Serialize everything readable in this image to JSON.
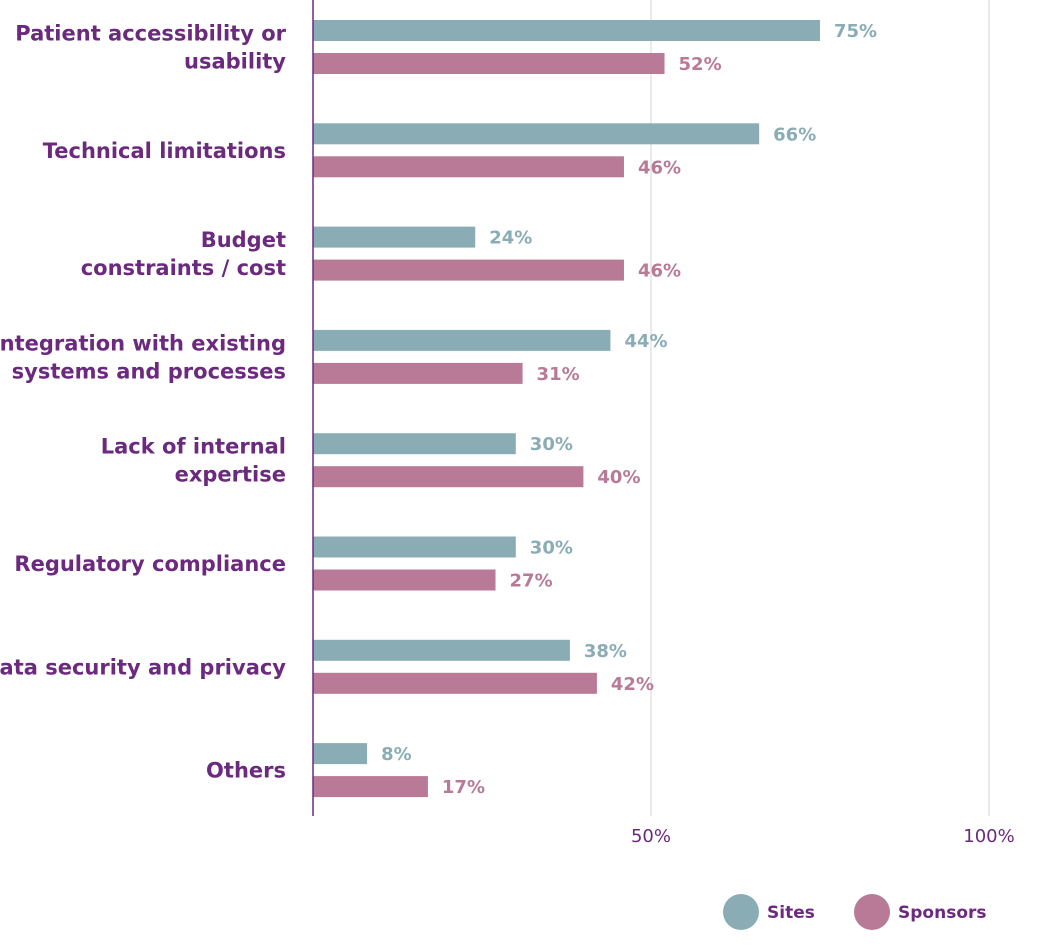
{
  "chart_data": {
    "type": "bar",
    "orientation": "horizontal",
    "categories": [
      [
        "Patient accessibility or",
        "usability"
      ],
      [
        "Technical limitations"
      ],
      [
        "Budget",
        "constraints / cost"
      ],
      [
        "Integration with existing",
        "systems and processes"
      ],
      [
        "Lack of internal",
        "expertise"
      ],
      [
        "Regulatory compliance"
      ],
      [
        "Data security and privacy"
      ],
      [
        "Others"
      ]
    ],
    "series": [
      {
        "name": "Sites",
        "color": "#8aadb5",
        "values": [
          75,
          66,
          24,
          44,
          30,
          30,
          38,
          8
        ],
        "labels": [
          "75%",
          "66%",
          "24%",
          "44%",
          "30%",
          "30%",
          "38%",
          "8%"
        ]
      },
      {
        "name": "Sponsors",
        "color": "#b87a96",
        "values": [
          52,
          46,
          46,
          31,
          40,
          27,
          42,
          17
        ],
        "labels": [
          "52%",
          "46%",
          "46%",
          "31%",
          "40%",
          "27%",
          "42%",
          "17%"
        ]
      }
    ],
    "xlim": [
      0,
      100
    ],
    "ticks": [
      {
        "value": 50,
        "label": "50%"
      },
      {
        "value": 100,
        "label": "100%"
      }
    ],
    "grid": true,
    "legend_position": "bottom-right",
    "colors": {
      "category_text": "#6b2a7e",
      "axis": "#6b2a7e",
      "grid": "#e3e3e3"
    }
  }
}
